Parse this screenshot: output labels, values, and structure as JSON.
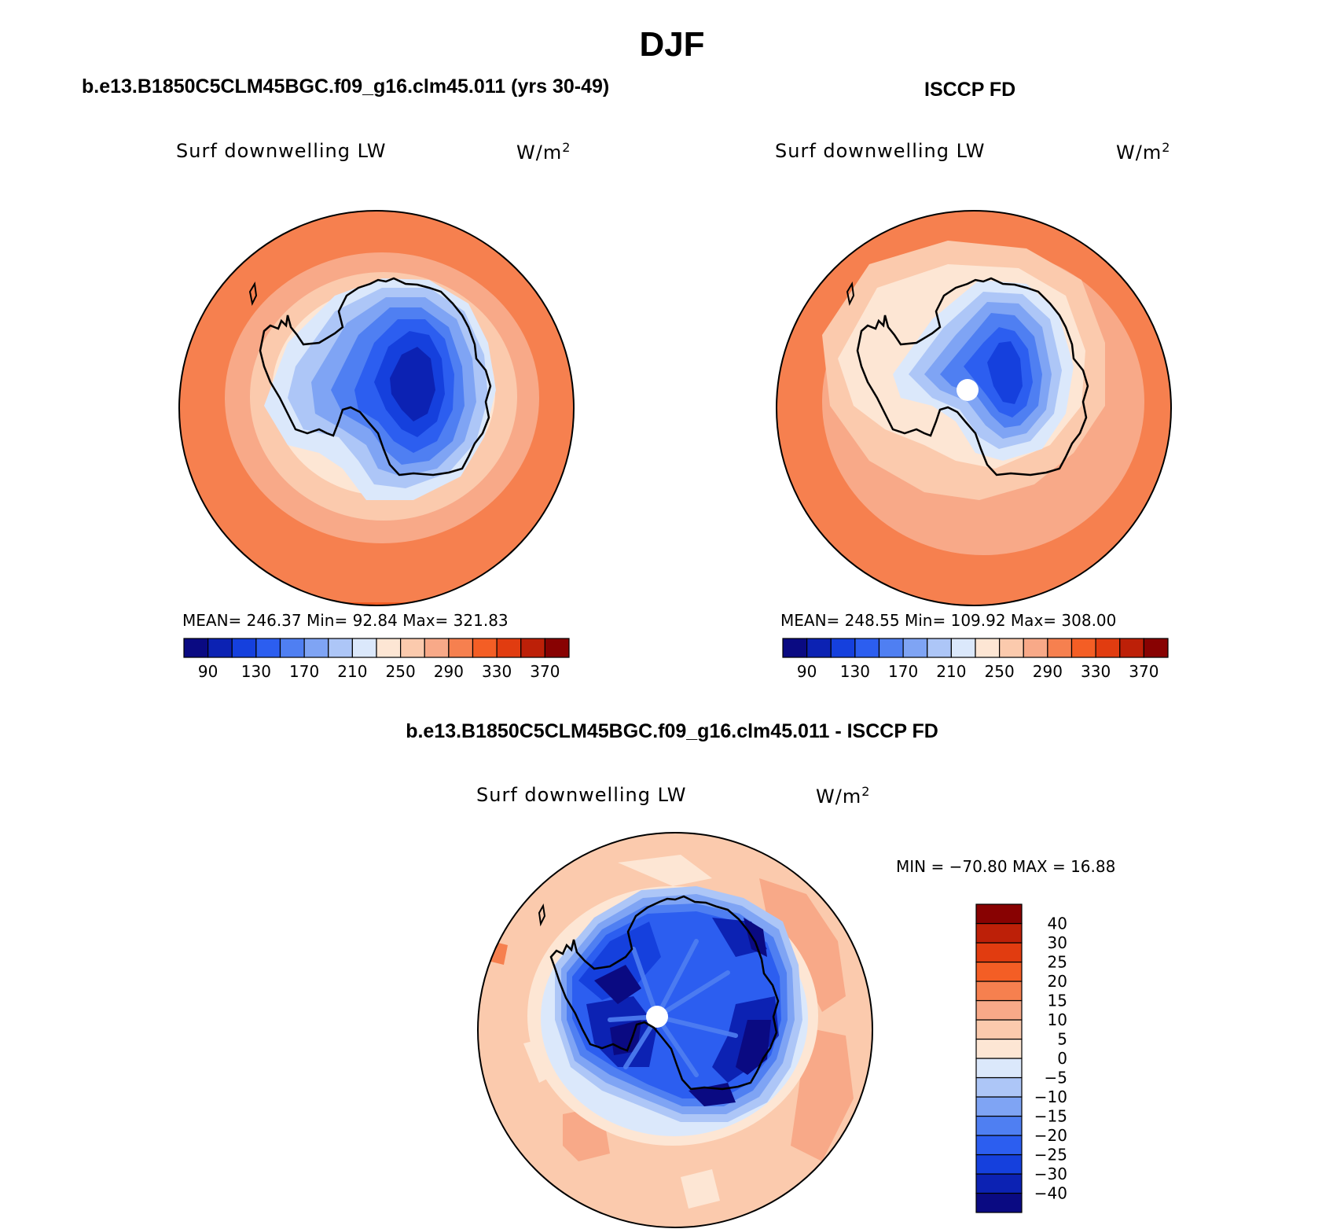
{
  "page": {
    "title": "DJF",
    "left_subtitle": "b.e13.B1850C5CLM45BGC.f09_g16.clm45.011 (yrs 30-49)",
    "right_subtitle": "ISCCP FD",
    "bottom_subtitle": "b.e13.B1850C5CLM45BGC.f09_g16.clm45.011 - ISCCP FD"
  },
  "panels": {
    "model": {
      "variable": "Surf downwelling LW",
      "units": "W/m",
      "units_sup": "2",
      "stats": "MEAN= 246.37   Min=   92.84   Max= 321.83"
    },
    "obs": {
      "variable": "Surf downwelling LW",
      "units": "W/m",
      "units_sup": "2",
      "stats": "MEAN= 248.55   Min= 109.92   Max= 308.00"
    },
    "diff": {
      "variable": "Surf downwelling LW",
      "units": "W/m",
      "units_sup": "2",
      "stats": "MIN = −70.80  MAX =   16.88"
    }
  },
  "colorbar_abs": {
    "colors": [
      "#0a0a82",
      "#0c22b3",
      "#1540dd",
      "#2c5ef0",
      "#4f7ff2",
      "#7fa4f4",
      "#adc6f7",
      "#dbe8fb",
      "#fde6d4",
      "#fbcaad",
      "#f8a988",
      "#f6804f",
      "#f45e25",
      "#e13c10",
      "#bd2008",
      "#880202"
    ],
    "ticks": [
      "90",
      "130",
      "170",
      "210",
      "250",
      "290",
      "330",
      "370"
    ]
  },
  "colorbar_diff": {
    "colors": [
      "#0a0a82",
      "#0c22b3",
      "#1540dd",
      "#2c5ef0",
      "#4f7ff2",
      "#7fa4f4",
      "#adc6f7",
      "#dbe8fb",
      "#fde6d4",
      "#fbcaad",
      "#f8a988",
      "#f6804f",
      "#f45e25",
      "#e13c10",
      "#bd2008",
      "#880202"
    ],
    "ticks": [
      "−40",
      "−30",
      "−25",
      "−20",
      "−15",
      "−10",
      "−5",
      "0",
      "5",
      "10",
      "15",
      "20",
      "25",
      "30",
      "40"
    ]
  }
}
